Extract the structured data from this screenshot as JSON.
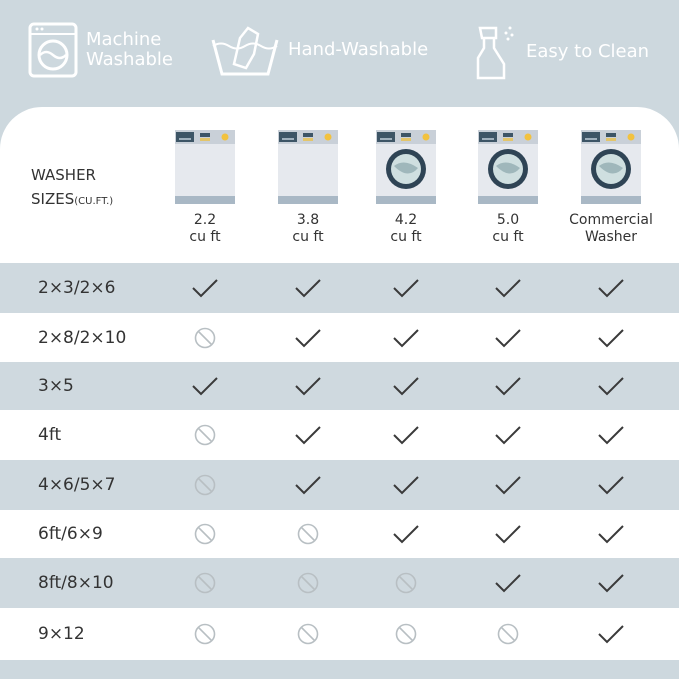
{
  "features": [
    {
      "icon": "washing-machine-icon",
      "label_line1": "Machine",
      "label_line2": "Washable"
    },
    {
      "icon": "hand-wash-icon",
      "label": "Hand-Washable"
    },
    {
      "icon": "spray-bottle-icon",
      "label": "Easy to Clean"
    }
  ],
  "table": {
    "header_label": "WASHER",
    "header_label2": "SIZES",
    "header_unit": "(CU.FT.)",
    "columns": [
      {
        "line1": "2.2",
        "line2": "cu ft",
        "icon": "top-load-washer-icon"
      },
      {
        "line1": "3.8",
        "line2": "cu ft",
        "icon": "top-load-washer-icon"
      },
      {
        "line1": "4.2",
        "line2": "cu ft",
        "icon": "front-load-washer-icon"
      },
      {
        "line1": "5.0",
        "line2": "cu ft",
        "icon": "front-load-washer-icon"
      },
      {
        "line1": "Commercial",
        "line2": "Washer",
        "icon": "front-load-washer-icon"
      }
    ],
    "rows": [
      {
        "size": "2×3/2×6",
        "fit": [
          true,
          true,
          true,
          true,
          true
        ]
      },
      {
        "size": "2×8/2×10",
        "fit": [
          false,
          true,
          true,
          true,
          true
        ]
      },
      {
        "size": "3×5",
        "fit": [
          true,
          true,
          true,
          true,
          true
        ]
      },
      {
        "size": "4ft",
        "fit": [
          false,
          true,
          true,
          true,
          true
        ]
      },
      {
        "size": "4×6/5×7",
        "fit": [
          false,
          true,
          true,
          true,
          true
        ]
      },
      {
        "size": "6ft/6×9",
        "fit": [
          false,
          false,
          true,
          true,
          true
        ]
      },
      {
        "size": "8ft/8×10",
        "fit": [
          false,
          false,
          false,
          true,
          true
        ]
      },
      {
        "size": "9×12",
        "fit": [
          false,
          false,
          false,
          false,
          true
        ]
      }
    ]
  },
  "colors": {
    "background": "#cdd8de",
    "stripe": "#cfd9df",
    "check": "#3a3a3a",
    "not_fit": "#b8bfc3",
    "washer_panel": "#3d5566"
  }
}
